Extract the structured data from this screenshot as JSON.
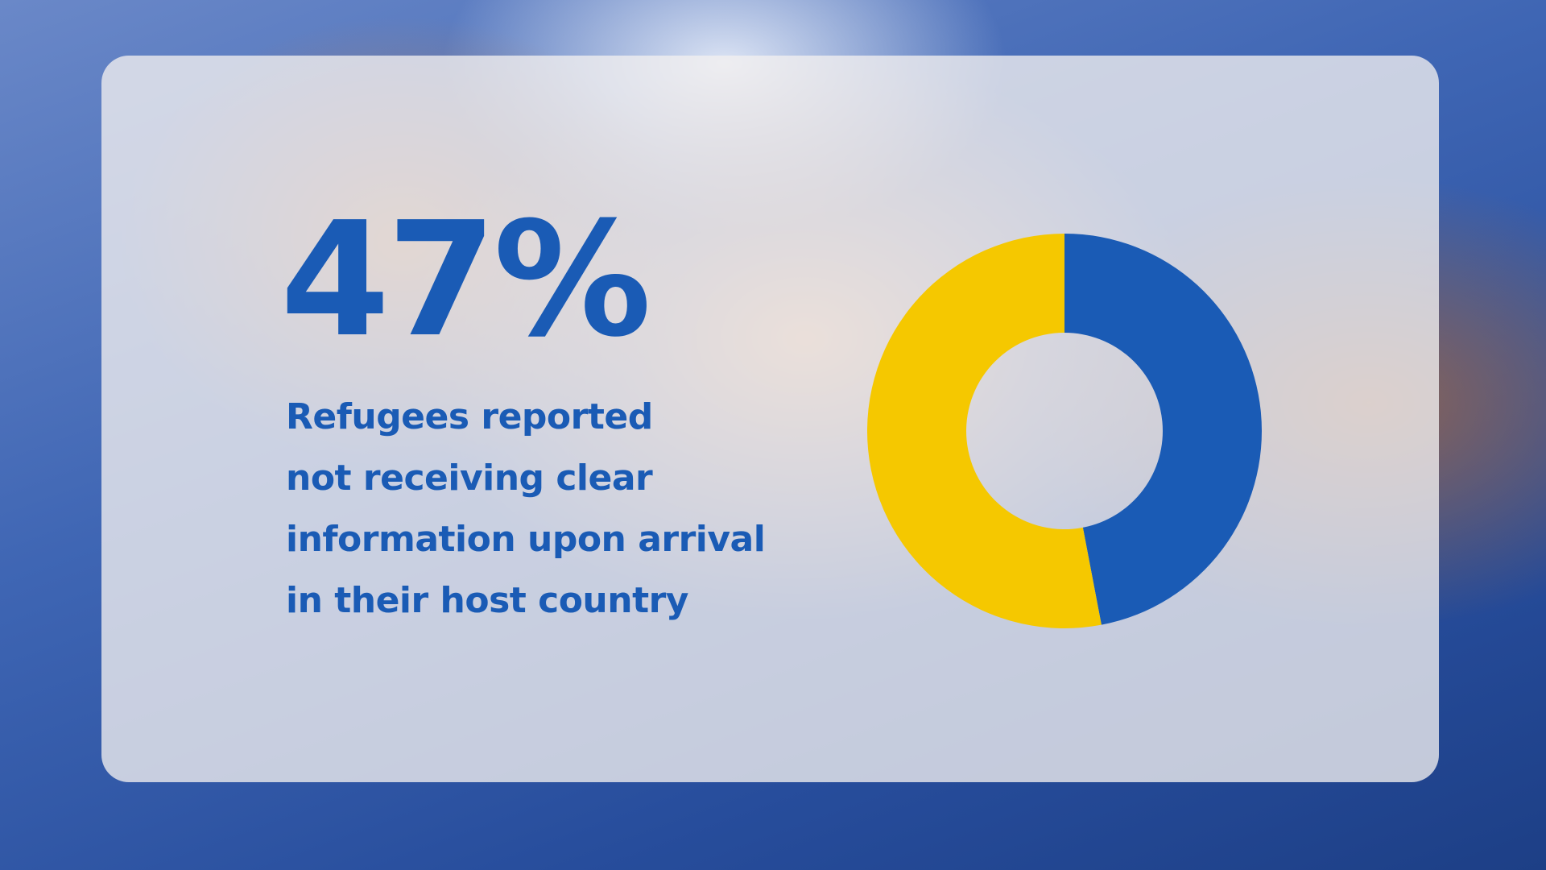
{
  "chart_data": {
    "type": "pie",
    "values": [
      47,
      53
    ],
    "value_labels": [
      "47%",
      null
    ],
    "colors": [
      "#1a5bb5",
      "#f5c800"
    ],
    "donut": true,
    "caption": [
      "Refugees reported",
      "not receiving clear",
      "information upon arrival",
      "in their host country"
    ]
  }
}
